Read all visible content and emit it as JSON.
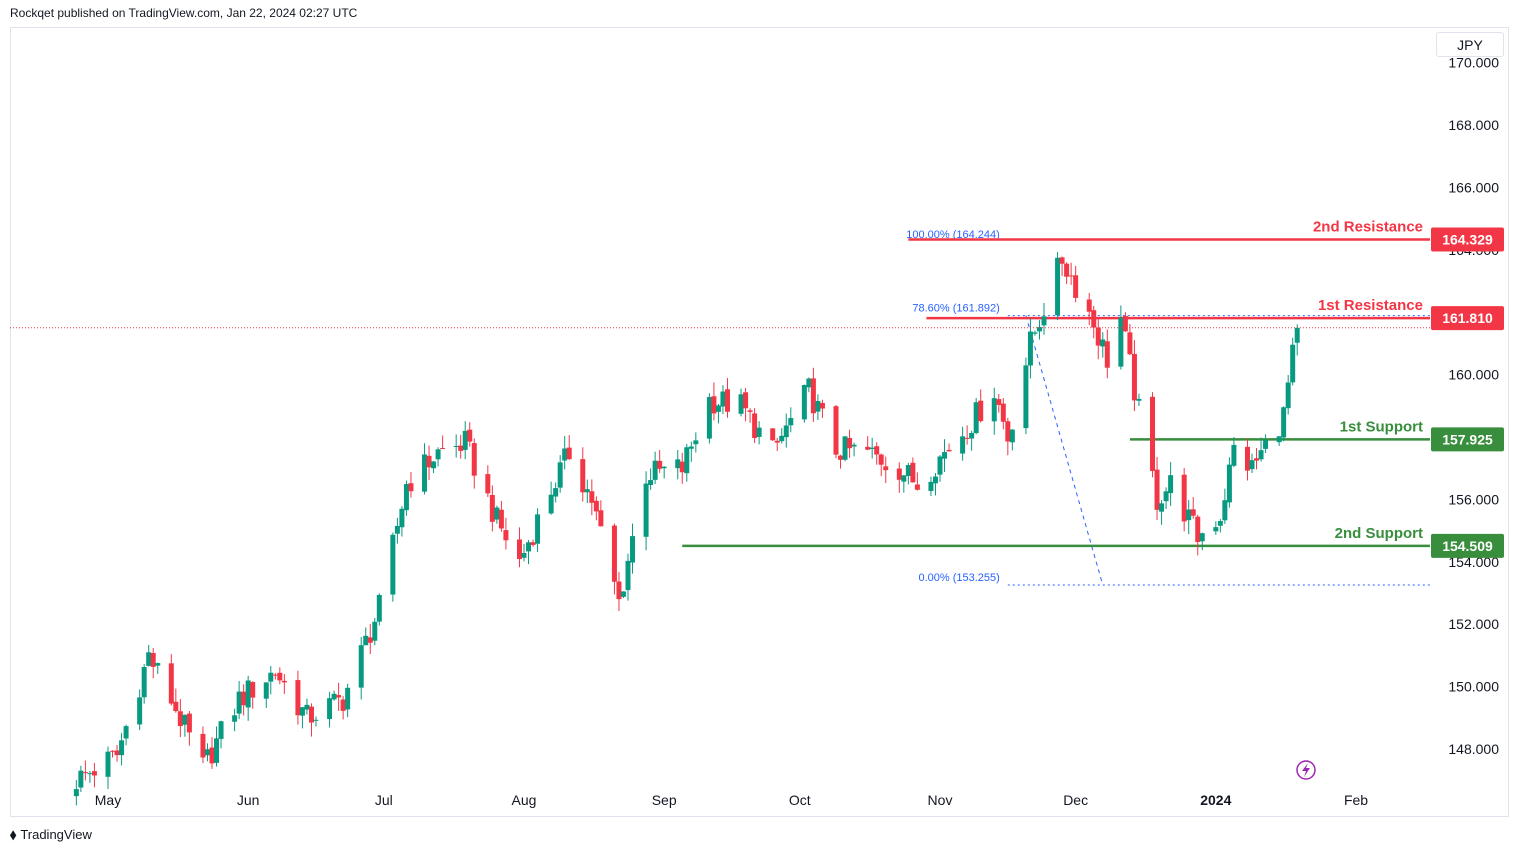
{
  "caption": "Rockqet published on TradingView.com, Jan 22, 2024 02:27 UTC",
  "currency": "JPY",
  "footer_brand": "TradingView",
  "colors": {
    "up": "#089981",
    "down": "#f23645",
    "support": "#388e3c",
    "resistance": "#f23645",
    "fib": "#2962ff"
  },
  "chart_data": {
    "type": "candlestick",
    "title": "",
    "ylim": [
      146.5,
      171.0
    ],
    "y_ticks": [
      "148.000",
      "150.000",
      "152.000",
      "154.000",
      "156.000",
      "158.000",
      "160.000",
      "162.000",
      "164.000",
      "166.000",
      "168.000",
      "170.000"
    ],
    "x_ticks": [
      {
        "label": "May",
        "date": "2023-05-01",
        "bold": false
      },
      {
        "label": "Jun",
        "date": "2023-06-01",
        "bold": false
      },
      {
        "label": "Jul",
        "date": "2023-07-01",
        "bold": false
      },
      {
        "label": "Aug",
        "date": "2023-08-01",
        "bold": false
      },
      {
        "label": "Sep",
        "date": "2023-09-01",
        "bold": false
      },
      {
        "label": "Oct",
        "date": "2023-10-01",
        "bold": false
      },
      {
        "label": "Nov",
        "date": "2023-11-01",
        "bold": false
      },
      {
        "label": "Dec",
        "date": "2023-12-01",
        "bold": false
      },
      {
        "label": "2024",
        "date": "2024-01-01",
        "bold": true
      },
      {
        "label": "Feb",
        "date": "2024-02-01",
        "bold": false
      }
    ],
    "date_range": [
      "2023-04-24",
      "2024-01-19"
    ],
    "anchors": [
      {
        "date": "2023-04-24",
        "close": 147.0
      },
      {
        "date": "2023-05-03",
        "close": 147.8
      },
      {
        "date": "2023-05-10",
        "close": 151.0
      },
      {
        "date": "2023-05-15",
        "close": 149.6
      },
      {
        "date": "2023-05-22",
        "close": 147.4
      },
      {
        "date": "2023-05-30",
        "close": 149.6
      },
      {
        "date": "2023-06-07",
        "close": 150.5
      },
      {
        "date": "2023-06-14",
        "close": 149.0
      },
      {
        "date": "2023-06-22",
        "close": 149.6
      },
      {
        "date": "2023-06-30",
        "close": 152.5
      },
      {
        "date": "2023-07-06",
        "close": 156.5
      },
      {
        "date": "2023-07-13",
        "close": 157.5
      },
      {
        "date": "2023-07-19",
        "close": 157.8
      },
      {
        "date": "2023-07-26",
        "close": 155.3
      },
      {
        "date": "2023-07-31",
        "close": 154.0
      },
      {
        "date": "2023-08-07",
        "close": 156.3
      },
      {
        "date": "2023-08-11",
        "close": 157.5
      },
      {
        "date": "2023-08-16",
        "close": 156.0
      },
      {
        "date": "2023-08-22",
        "close": 152.7
      },
      {
        "date": "2023-08-28",
        "close": 156.8
      },
      {
        "date": "2023-09-05",
        "close": 157.0
      },
      {
        "date": "2023-09-11",
        "close": 159.2
      },
      {
        "date": "2023-09-18",
        "close": 159.0
      },
      {
        "date": "2023-09-25",
        "close": 157.5
      },
      {
        "date": "2023-10-03",
        "close": 159.5
      },
      {
        "date": "2023-10-09",
        "close": 157.6
      },
      {
        "date": "2023-10-16",
        "close": 157.5
      },
      {
        "date": "2023-10-23",
        "close": 157.0
      },
      {
        "date": "2023-10-27",
        "close": 156.5
      },
      {
        "date": "2023-11-02",
        "close": 157.5
      },
      {
        "date": "2023-11-08",
        "close": 158.5
      },
      {
        "date": "2023-11-13",
        "close": 159.5
      },
      {
        "date": "2023-11-16",
        "close": 158.0
      },
      {
        "date": "2023-11-21",
        "close": 161.0
      },
      {
        "date": "2023-11-28",
        "close": 163.7
      },
      {
        "date": "2023-12-04",
        "close": 162.0
      },
      {
        "date": "2023-12-08",
        "close": 160.5
      },
      {
        "date": "2023-12-11",
        "close": 161.8
      },
      {
        "date": "2023-12-14",
        "close": 159.5
      },
      {
        "date": "2023-12-19",
        "close": 156.0
      },
      {
        "date": "2023-12-22",
        "close": 156.5
      },
      {
        "date": "2023-12-28",
        "close": 154.8
      },
      {
        "date": "2024-01-02",
        "close": 155.5
      },
      {
        "date": "2024-01-05",
        "close": 157.6
      },
      {
        "date": "2024-01-09",
        "close": 157.0
      },
      {
        "date": "2024-01-12",
        "close": 157.7
      },
      {
        "date": "2024-01-16",
        "close": 158.7
      },
      {
        "date": "2024-01-19",
        "close": 161.5
      }
    ],
    "last_price": 161.5,
    "levels": [
      {
        "label": "2nd Resistance",
        "value": 164.329,
        "tag": "164.329",
        "kind": "resistance",
        "from_date": "2023-10-25"
      },
      {
        "label": "1st Resistance",
        "value": 161.81,
        "tag": "161.810",
        "kind": "resistance",
        "from_date": "2023-10-29"
      },
      {
        "label": "1st Support",
        "value": 157.925,
        "tag": "157.925",
        "kind": "support",
        "from_date": "2023-12-13"
      },
      {
        "label": "2nd Support",
        "value": 154.509,
        "tag": "154.509",
        "kind": "support",
        "from_date": "2023-09-05"
      }
    ],
    "fib": [
      {
        "label": "100.00% (164.244)",
        "value": 164.244
      },
      {
        "label": "78.60% (161.892)",
        "value": 161.892
      },
      {
        "label": "0.00% (153.255)",
        "value": 153.255
      }
    ]
  }
}
